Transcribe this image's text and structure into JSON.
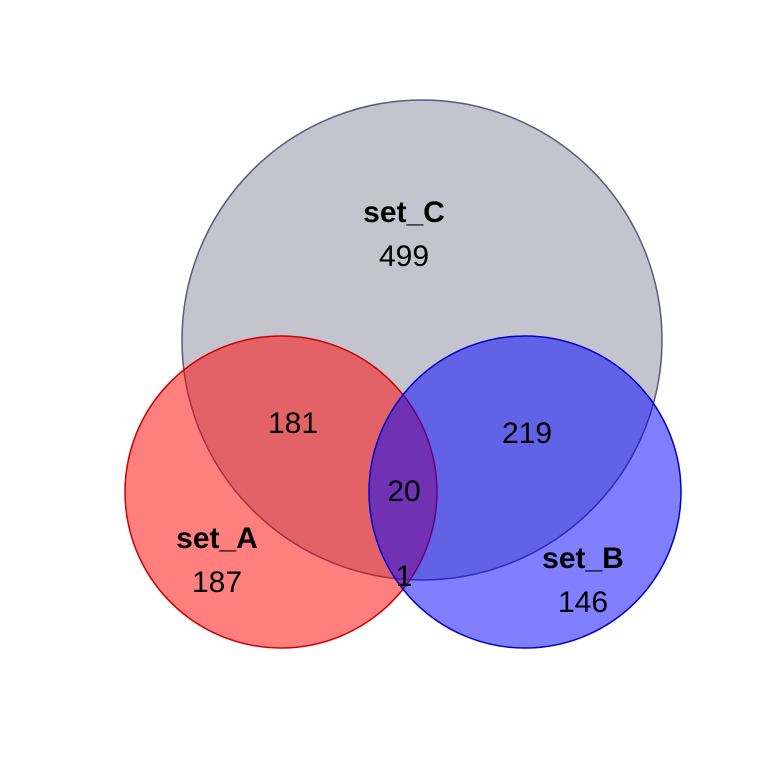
{
  "sets": {
    "A": {
      "name": "set_A",
      "only": "187",
      "fill": "#ff0000",
      "stroke": "#cc0000"
    },
    "B": {
      "name": "set_B",
      "only": "146",
      "fill": "#0000ff",
      "stroke": "#0000cc"
    },
    "C": {
      "name": "set_C",
      "only": "499",
      "fill": "#8a8aa0",
      "stroke": "#5a5a7a"
    }
  },
  "regions": {
    "A_C": "181",
    "B_C": "219",
    "A_B_C": "20",
    "A_B": "1"
  }
}
